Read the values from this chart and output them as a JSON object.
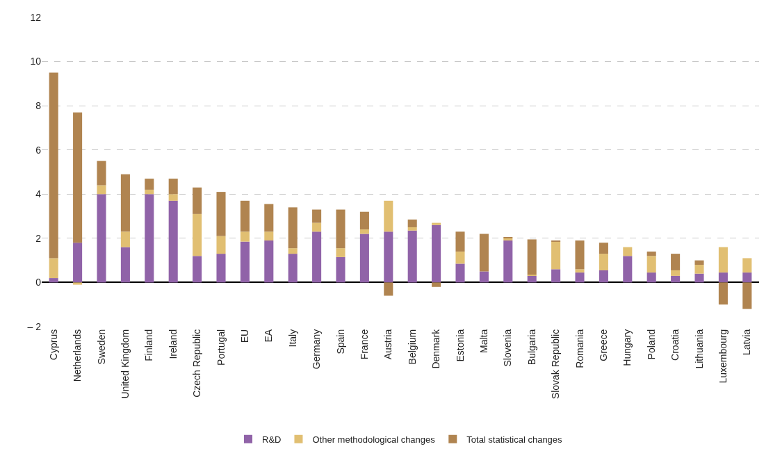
{
  "chart_data": {
    "type": "bar",
    "stacked": true,
    "categories": [
      "Cyprus",
      "Netherlands",
      "Sweden",
      "United Kingdom",
      "Finland",
      "Ireland",
      "Czech Republic",
      "Portugal",
      "EU",
      "EA",
      "Italy",
      "Germany",
      "Spain",
      "France",
      "Austria",
      "Belgium",
      "Denmark",
      "Estonia",
      "Malta",
      "Slovenia",
      "Bulgaria",
      "Slovak Republic",
      "Romania",
      "Greece",
      "Hungary",
      "Poland",
      "Croatia",
      "Lithuania",
      "Luxembourg",
      "Latvia"
    ],
    "series": [
      {
        "name": "R&D",
        "color": "#9063a8",
        "values": [
          0.2,
          1.8,
          4.0,
          1.6,
          4.0,
          3.7,
          1.2,
          1.3,
          1.85,
          1.9,
          1.3,
          2.3,
          1.15,
          2.2,
          2.3,
          2.35,
          2.6,
          0.85,
          0.5,
          1.9,
          0.3,
          0.6,
          0.45,
          0.55,
          1.2,
          0.45,
          0.3,
          0.4,
          0.45,
          0.45
        ]
      },
      {
        "name": "Other methodological changes",
        "color": "#e1bf72",
        "values": [
          0.9,
          -0.1,
          0.4,
          0.7,
          0.2,
          0.3,
          1.9,
          0.8,
          0.45,
          0.4,
          0.25,
          0.4,
          0.4,
          0.2,
          1.4,
          0.15,
          0.1,
          0.55,
          0.0,
          0.1,
          0.05,
          1.25,
          0.15,
          0.75,
          0.4,
          0.75,
          0.25,
          0.4,
          1.15,
          0.65
        ]
      },
      {
        "name": "Total statistical changes",
        "color": "#b08450",
        "values": [
          8.4,
          5.9,
          1.1,
          2.6,
          0.5,
          0.7,
          1.2,
          2.0,
          1.4,
          1.25,
          1.85,
          0.6,
          1.75,
          0.8,
          -0.6,
          0.35,
          -0.2,
          0.9,
          1.7,
          0.05,
          1.6,
          0.05,
          1.3,
          0.5,
          0.0,
          0.2,
          0.75,
          0.2,
          -1.0,
          -1.2
        ]
      }
    ],
    "ylim": [
      -2,
      12
    ],
    "yticks": [
      {
        "value": -2,
        "label": "– 2"
      },
      0,
      2,
      4,
      6,
      8,
      10,
      12
    ],
    "grid": "y",
    "legend": "bottom"
  }
}
